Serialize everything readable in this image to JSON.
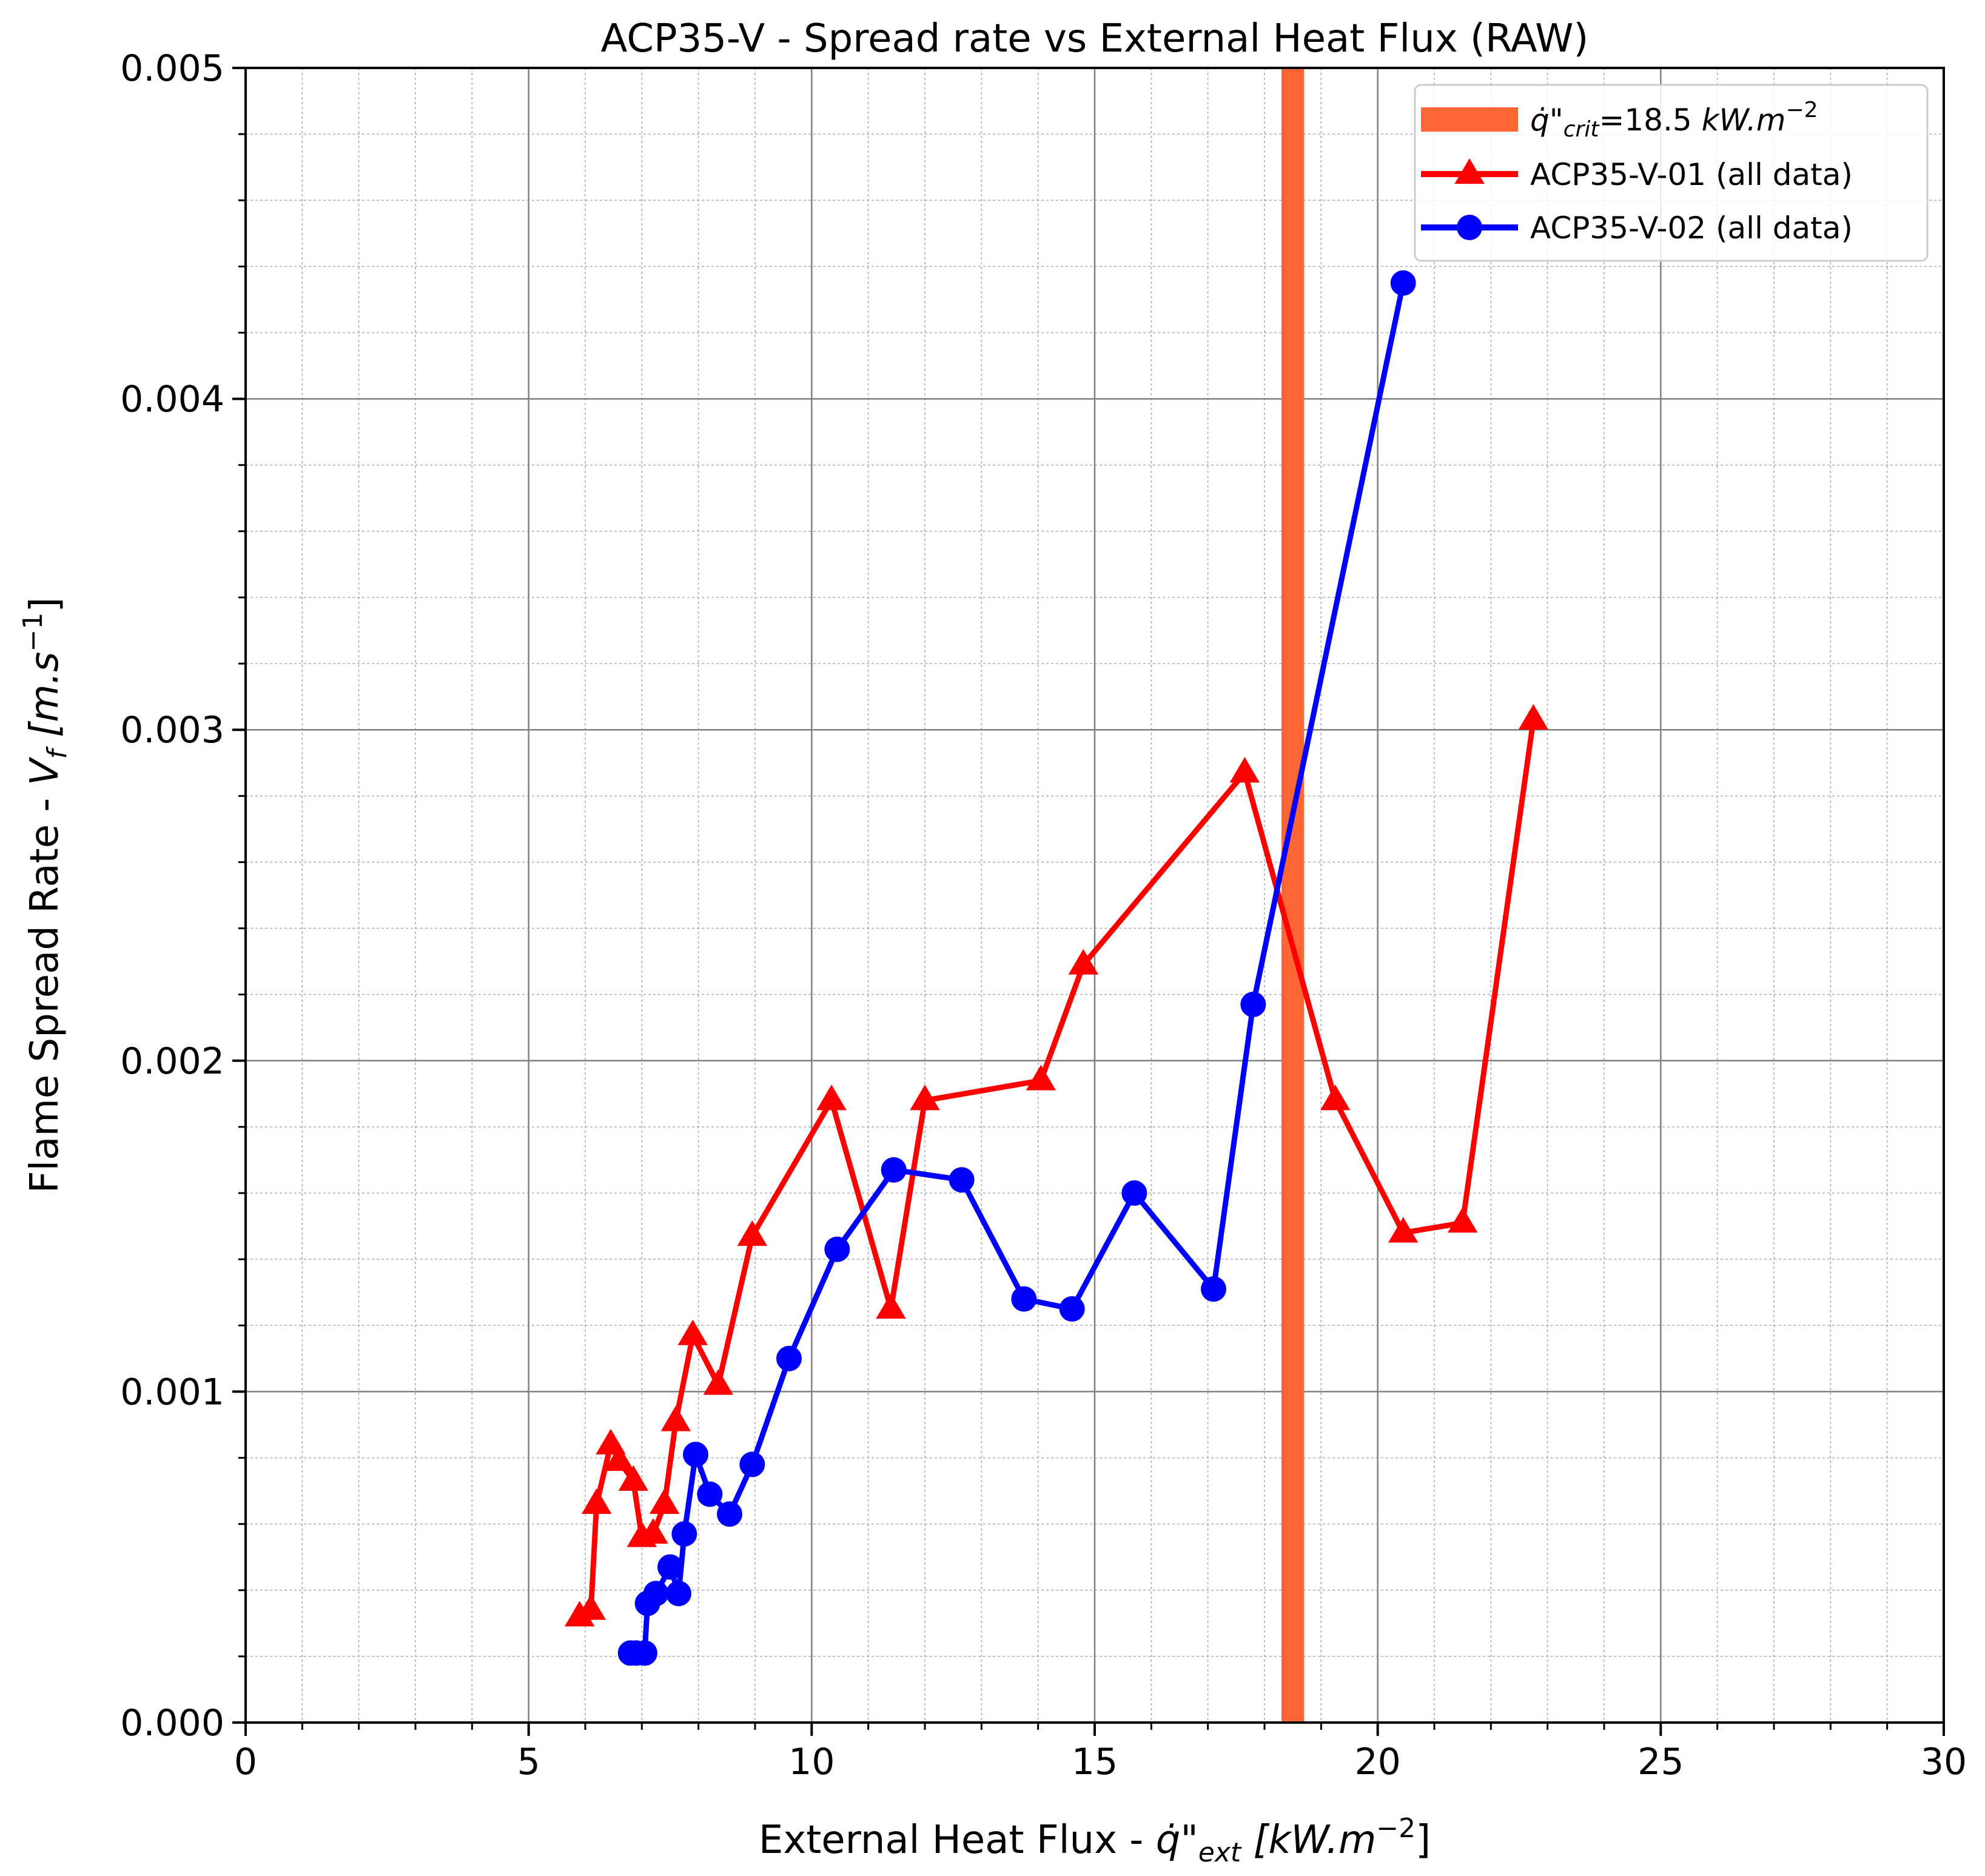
{
  "chart_data": {
    "type": "line",
    "title": "ACP35-V - Spread rate vs External Heat Flux (RAW)",
    "xlabel": "External Heat Flux - q̇\"ext [kW.m⁻²]",
    "xlabel_parts": {
      "main": "External Heat Flux - ",
      "sym": "q̇\"",
      "sub": "ext",
      "unit": " [kW.m",
      "exp": "−2",
      "close": "]"
    },
    "ylabel": "Flame Spread Rate - Vf [m.s⁻¹]",
    "ylabel_parts": {
      "main": "Flame Spread Rate - ",
      "sym": "V",
      "sub": "f",
      "unit": " [m.s",
      "exp": "−1",
      "close": "]"
    },
    "xlim": [
      0,
      30
    ],
    "ylim": [
      0,
      0.005
    ],
    "x_ticks": [
      "0",
      "5",
      "10",
      "15",
      "20",
      "25",
      "30"
    ],
    "y_ticks": [
      "0.000",
      "0.001",
      "0.002",
      "0.003",
      "0.004",
      "0.005"
    ],
    "grid": true,
    "legend_position": "top-right",
    "critical_band": {
      "label": "q̇\"crit=18.5 kW.m⁻²",
      "label_parts": {
        "sym": "q̇\"",
        "sub": "crit",
        "value": "=18.5 ",
        "unit": "kW.m",
        "exp": "−2"
      },
      "x_start": 18.3,
      "x_end": 18.7,
      "color": "#ff6633"
    },
    "series": [
      {
        "name": "ACP35-V-01 (all data)",
        "color": "#ff0000",
        "marker": "triangle",
        "points": [
          [
            5.9,
            0.00032
          ],
          [
            6.1,
            0.00034
          ],
          [
            6.2,
            0.00066
          ],
          [
            6.45,
            0.00084
          ],
          [
            6.6,
            0.00079
          ],
          [
            6.85,
            0.00073
          ],
          [
            7.0,
            0.00056
          ],
          [
            7.2,
            0.00057
          ],
          [
            7.4,
            0.00066
          ],
          [
            7.6,
            0.00091
          ],
          [
            7.9,
            0.00117
          ],
          [
            8.35,
            0.00102
          ],
          [
            8.95,
            0.00147
          ],
          [
            10.35,
            0.00188
          ],
          [
            11.4,
            0.00125
          ],
          [
            12.0,
            0.00188
          ],
          [
            14.05,
            0.00194
          ],
          [
            14.8,
            0.00229
          ],
          [
            17.65,
            0.00287
          ],
          [
            19.25,
            0.00188
          ],
          [
            20.45,
            0.00148
          ],
          [
            21.5,
            0.00151
          ],
          [
            22.75,
            0.00303
          ]
        ]
      },
      {
        "name": "ACP35-V-02 (all data)",
        "color": "#0000ff",
        "marker": "circle",
        "points": [
          [
            6.8,
            0.00021
          ],
          [
            6.9,
            0.00021
          ],
          [
            7.05,
            0.00021
          ],
          [
            7.1,
            0.00036
          ],
          [
            7.25,
            0.00039
          ],
          [
            7.5,
            0.00047
          ],
          [
            7.65,
            0.00039
          ],
          [
            7.75,
            0.00057
          ],
          [
            7.95,
            0.00081
          ],
          [
            8.2,
            0.00069
          ],
          [
            8.55,
            0.00063
          ],
          [
            8.95,
            0.00078
          ],
          [
            9.6,
            0.0011
          ],
          [
            10.45,
            0.00143
          ],
          [
            11.45,
            0.00167
          ],
          [
            12.65,
            0.00164
          ],
          [
            13.75,
            0.00128
          ],
          [
            14.6,
            0.00125
          ],
          [
            15.7,
            0.0016
          ],
          [
            17.1,
            0.00131
          ],
          [
            17.8,
            0.00217
          ],
          [
            20.45,
            0.00435
          ]
        ]
      }
    ]
  }
}
